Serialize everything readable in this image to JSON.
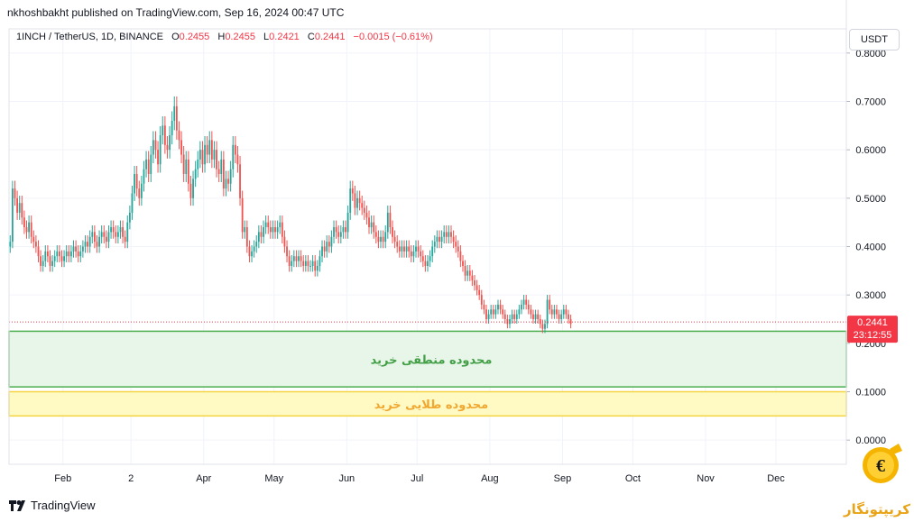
{
  "header": {
    "publisher_line": "nkhoshbakht published on TradingView.com, Sep 16, 2024 00:47 UTC"
  },
  "legend": {
    "symbol": "1INCH / TetherUS, 1D, BINANCE",
    "o_label": "O",
    "o_value": "0.2455",
    "h_label": "H",
    "h_value": "0.2455",
    "l_label": "L",
    "l_value": "0.2421",
    "c_label": "C",
    "c_value": "0.2441",
    "change": "−0.0015 (−0.61%)"
  },
  "currency_button": "USDT",
  "footer": {
    "brand": "TradingView"
  },
  "watermark": {
    "text": "کریپتونگار"
  },
  "colors": {
    "up": "#26a69a",
    "down": "#ef5350",
    "price_label_bg": "#f23645",
    "zone1_fill": "#e8f5e9",
    "zone1_border": "#4caf50",
    "zone1_text": "#43a047",
    "zone2_fill": "#fff9c4",
    "zone2_border": "#f5d442",
    "zone2_text": "#f0a830"
  },
  "chart_data": {
    "type": "candlestick",
    "title": "1INCH / TetherUS, 1D, BINANCE",
    "y_axis": {
      "position": "right",
      "range": [
        -0.05,
        0.85
      ],
      "ticks": [
        0.8,
        0.7,
        0.6,
        0.5,
        0.4,
        0.3,
        0.2,
        0.1,
        0.0
      ],
      "tick_labels": [
        "0.8000",
        "0.7000",
        "0.6000",
        "0.5000",
        "0.4000",
        "0.3000",
        "0.2000",
        "0.1000",
        "0.0000"
      ]
    },
    "x_axis": {
      "range": [
        "2024-01-09",
        "2024-12-31"
      ],
      "ticks": [
        {
          "date": "2024-02-01",
          "label": "Feb"
        },
        {
          "date": "2024-03-01",
          "label": "2"
        },
        {
          "date": "2024-04-01",
          "label": "Apr"
        },
        {
          "date": "2024-05-01",
          "label": "May"
        },
        {
          "date": "2024-06-01",
          "label": "Jun"
        },
        {
          "date": "2024-07-01",
          "label": "Jul"
        },
        {
          "date": "2024-08-01",
          "label": "Aug"
        },
        {
          "date": "2024-09-01",
          "label": "Sep"
        },
        {
          "date": "2024-10-01",
          "label": "Oct"
        },
        {
          "date": "2024-11-01",
          "label": "Nov"
        },
        {
          "date": "2024-12-01",
          "label": "Dec"
        }
      ]
    },
    "grid": true,
    "start_date": "2024-01-09",
    "closes": [
      0.41,
      0.52,
      0.5,
      0.47,
      0.49,
      0.46,
      0.44,
      0.43,
      0.45,
      0.42,
      0.41,
      0.4,
      0.38,
      0.36,
      0.37,
      0.39,
      0.38,
      0.36,
      0.37,
      0.38,
      0.39,
      0.38,
      0.37,
      0.38,
      0.39,
      0.38,
      0.39,
      0.4,
      0.39,
      0.38,
      0.39,
      0.4,
      0.41,
      0.4,
      0.42,
      0.43,
      0.41,
      0.4,
      0.42,
      0.43,
      0.42,
      0.41,
      0.43,
      0.44,
      0.43,
      0.42,
      0.43,
      0.44,
      0.42,
      0.41,
      0.45,
      0.47,
      0.51,
      0.55,
      0.52,
      0.5,
      0.53,
      0.56,
      0.58,
      0.55,
      0.59,
      0.62,
      0.6,
      0.57,
      0.63,
      0.65,
      0.61,
      0.6,
      0.63,
      0.66,
      0.69,
      0.64,
      0.62,
      0.59,
      0.55,
      0.58,
      0.53,
      0.5,
      0.54,
      0.56,
      0.58,
      0.6,
      0.57,
      0.61,
      0.59,
      0.62,
      0.58,
      0.6,
      0.56,
      0.55,
      0.58,
      0.52,
      0.54,
      0.53,
      0.56,
      0.61,
      0.59,
      0.57,
      0.5,
      0.43,
      0.44,
      0.4,
      0.38,
      0.39,
      0.4,
      0.41,
      0.43,
      0.42,
      0.44,
      0.45,
      0.44,
      0.43,
      0.44,
      0.43,
      0.44,
      0.45,
      0.42,
      0.4,
      0.38,
      0.36,
      0.37,
      0.38,
      0.37,
      0.38,
      0.37,
      0.36,
      0.37,
      0.36,
      0.36,
      0.37,
      0.35,
      0.36,
      0.38,
      0.4,
      0.39,
      0.41,
      0.4,
      0.42,
      0.44,
      0.43,
      0.42,
      0.43,
      0.44,
      0.43,
      0.47,
      0.52,
      0.51,
      0.48,
      0.5,
      0.49,
      0.48,
      0.47,
      0.46,
      0.44,
      0.45,
      0.43,
      0.42,
      0.41,
      0.42,
      0.41,
      0.43,
      0.47,
      0.44,
      0.42,
      0.41,
      0.4,
      0.39,
      0.4,
      0.39,
      0.4,
      0.39,
      0.38,
      0.39,
      0.4,
      0.39,
      0.38,
      0.37,
      0.36,
      0.37,
      0.38,
      0.4,
      0.41,
      0.42,
      0.41,
      0.42,
      0.43,
      0.42,
      0.43,
      0.42,
      0.41,
      0.4,
      0.39,
      0.37,
      0.36,
      0.34,
      0.35,
      0.34,
      0.33,
      0.32,
      0.31,
      0.3,
      0.28,
      0.27,
      0.25,
      0.26,
      0.27,
      0.26,
      0.27,
      0.28,
      0.27,
      0.26,
      0.25,
      0.24,
      0.25,
      0.26,
      0.25,
      0.26,
      0.27,
      0.28,
      0.29,
      0.28,
      0.27,
      0.26,
      0.25,
      0.26,
      0.25,
      0.24,
      0.23,
      0.24,
      0.29,
      0.27,
      0.26,
      0.27,
      0.26,
      0.25,
      0.26,
      0.27,
      0.26,
      0.25,
      0.24
    ],
    "last_price": "0.2441",
    "countdown": "23:12:55",
    "zones": [
      {
        "label": "محدوده منطقی خرید",
        "from": 0.11,
        "to": 0.225
      },
      {
        "label": "محدوده طلایی خرید",
        "from": 0.05,
        "to": 0.1
      }
    ]
  }
}
